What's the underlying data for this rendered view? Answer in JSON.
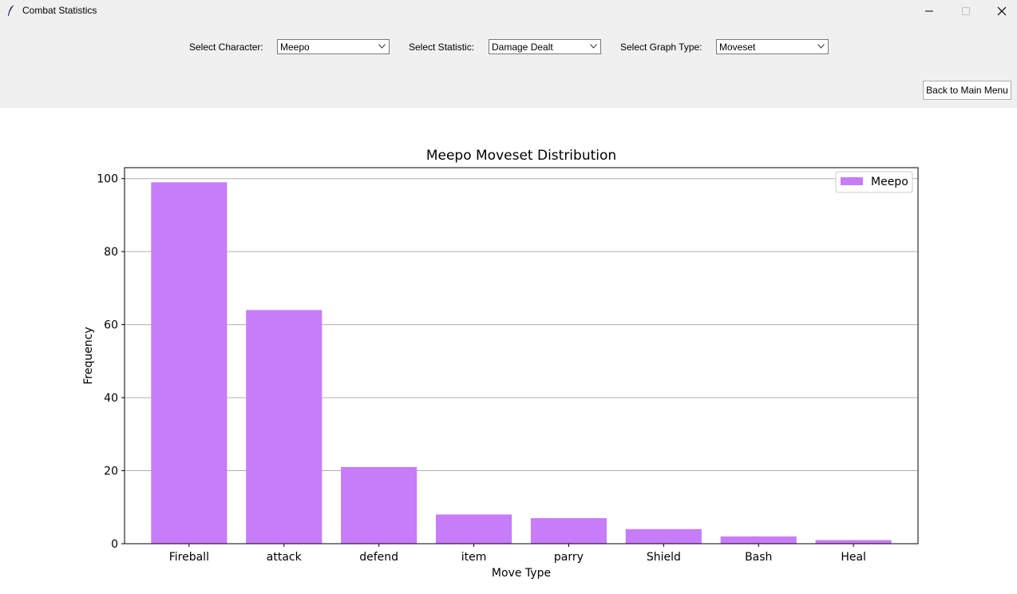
{
  "window": {
    "title": "Combat Statistics"
  },
  "controls": {
    "character_label": "Select Character:",
    "character_value": "Meepo",
    "statistic_label": "Select Statistic:",
    "statistic_value": "Damage Dealt",
    "graph_type_label": "Select Graph Type:",
    "graph_type_value": "Moveset",
    "back_button_label": "Back to Main Menu"
  },
  "icons": {
    "app": "feather-icon",
    "minimize": "minimize-icon",
    "maximize": "maximize-icon",
    "close": "close-icon",
    "dropdown": "chevron-down-icon"
  },
  "chart_data": {
    "type": "bar",
    "title": "Meepo Moveset Distribution",
    "xlabel": "Move Type",
    "ylabel": "Frequency",
    "categories": [
      "Fireball",
      "attack",
      "defend",
      "item",
      "parry",
      "Shield",
      "Bash",
      "Heal"
    ],
    "series": [
      {
        "name": "Meepo",
        "values": [
          99,
          64,
          21,
          8,
          7,
          4,
          2,
          1
        ],
        "color": "#c77cf9"
      }
    ],
    "ylim": [
      0,
      103
    ],
    "yticks": [
      0,
      20,
      40,
      60,
      80,
      100
    ],
    "grid": "y",
    "legend_position": "top-right"
  }
}
